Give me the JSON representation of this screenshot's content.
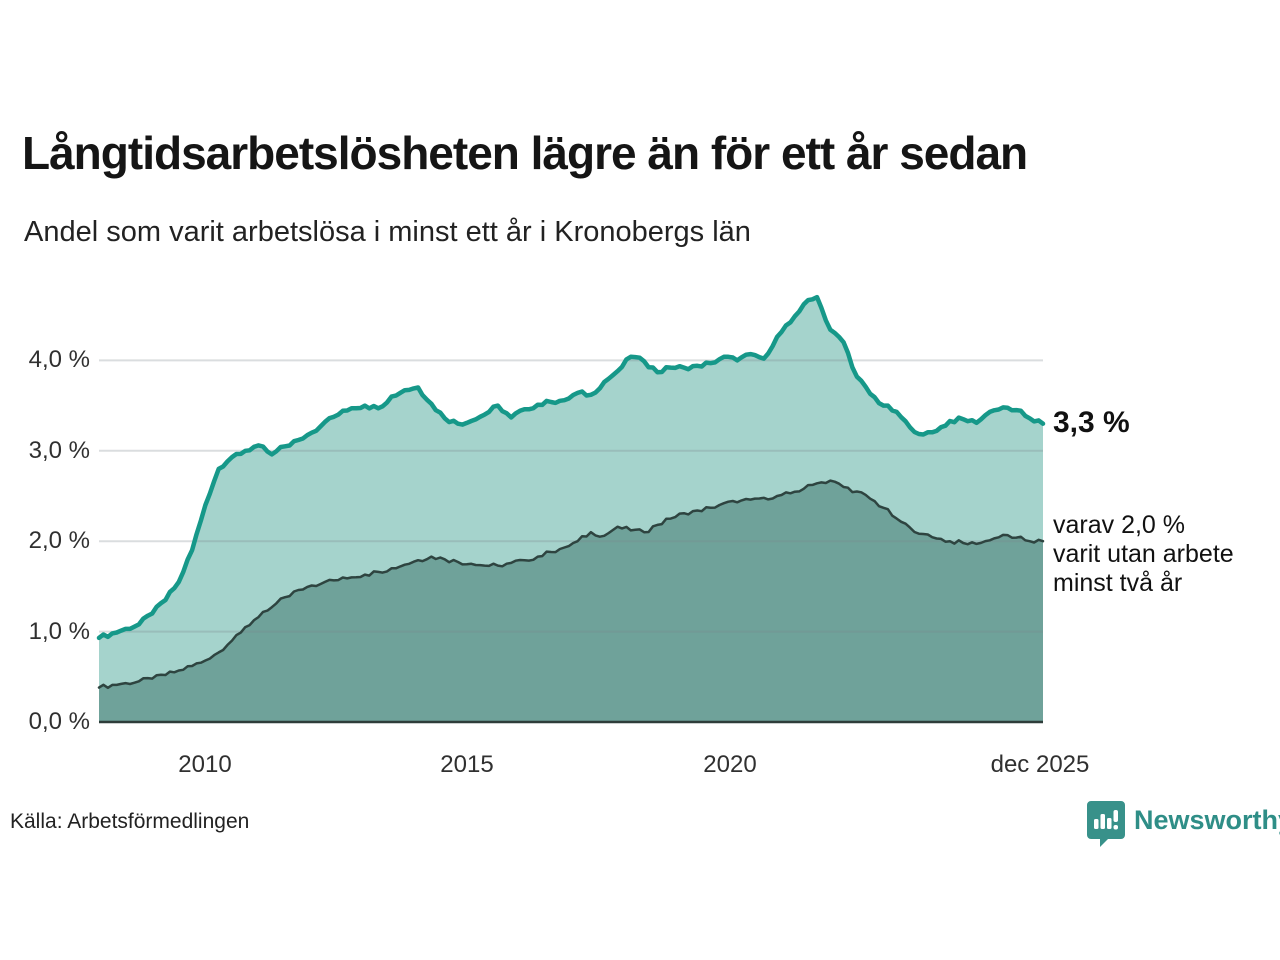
{
  "header": {
    "title": "Långtidsarbetslösheten lägre än för ett år sedan",
    "subtitle": "Andel som varit arbetslösa i minst ett år i Kronobergs län"
  },
  "chart_data": {
    "type": "area",
    "title": "Långtidsarbetslösheten lägre än för ett år sedan",
    "subtitle": "Andel som varit arbetslösa i minst ett år i Kronobergs län",
    "xlabel": "",
    "ylabel": "",
    "x_start": 2008,
    "x_step": 0.25,
    "x_domain": [
      2008,
      2025.75
    ],
    "ylim": [
      0,
      4.7
    ],
    "grid": "horizontal",
    "y_ticks": [
      "4,0 %",
      "3,0 %",
      "2,0 %",
      "1,0 %",
      "0,0 %"
    ],
    "y_tick_values": [
      4.0,
      3.0,
      2.0,
      1.0,
      0.0
    ],
    "x_ticks": [
      {
        "label": "2010",
        "year": 2010
      },
      {
        "label": "2015",
        "year": 2015
      },
      {
        "label": "2020",
        "year": 2020
      },
      {
        "label": "dec 2025",
        "year": 2025.75
      }
    ],
    "series": [
      {
        "name": "Andel som varit arbetslösa minst ett år",
        "line_color": "#169889",
        "fill_color": "#a5d3cc",
        "end_value": 3.3,
        "values": [
          0.93,
          0.98,
          1.03,
          1.08,
          1.2,
          1.35,
          1.55,
          1.9,
          2.4,
          2.8,
          2.93,
          3.0,
          3.06,
          2.96,
          3.05,
          3.12,
          3.2,
          3.32,
          3.4,
          3.47,
          3.5,
          3.47,
          3.6,
          3.67,
          3.7,
          3.52,
          3.36,
          3.3,
          3.33,
          3.4,
          3.5,
          3.37,
          3.46,
          3.51,
          3.54,
          3.56,
          3.64,
          3.62,
          3.76,
          3.88,
          4.04,
          3.99,
          3.87,
          3.92,
          3.92,
          3.94,
          3.97,
          4.04,
          4.0,
          4.07,
          4.02,
          4.26,
          4.42,
          4.62,
          4.7,
          4.34,
          4.2,
          3.82,
          3.63,
          3.5,
          3.43,
          3.26,
          3.18,
          3.22,
          3.33,
          3.35,
          3.31,
          3.43,
          3.48,
          3.45,
          3.36,
          3.3
        ]
      },
      {
        "name": "varav utan arbete minst två år",
        "line_color": "#2e4440",
        "fill_color": "#6fa29a",
        "end_value": 2.0,
        "values": [
          0.38,
          0.41,
          0.43,
          0.45,
          0.48,
          0.52,
          0.57,
          0.62,
          0.68,
          0.77,
          0.9,
          1.05,
          1.16,
          1.27,
          1.38,
          1.46,
          1.51,
          1.55,
          1.57,
          1.6,
          1.63,
          1.66,
          1.7,
          1.74,
          1.79,
          1.83,
          1.8,
          1.77,
          1.75,
          1.73,
          1.73,
          1.76,
          1.79,
          1.83,
          1.88,
          1.93,
          2.0,
          2.1,
          2.06,
          2.16,
          2.12,
          2.1,
          2.18,
          2.25,
          2.31,
          2.34,
          2.37,
          2.42,
          2.43,
          2.46,
          2.48,
          2.5,
          2.53,
          2.58,
          2.64,
          2.67,
          2.6,
          2.55,
          2.47,
          2.37,
          2.25,
          2.15,
          2.08,
          2.03,
          2.0,
          1.98,
          1.97,
          2.01,
          2.07,
          2.04,
          2.0,
          2.0
        ]
      }
    ],
    "annotations": {
      "latest_value": "3,3 %",
      "secondary_line1": "varav 2,0 %",
      "secondary_line2": "varit utan arbete",
      "secondary_line3": "minst två år"
    }
  },
  "footer": {
    "source": "Källa: Arbetsförmedlingen",
    "brand": "Newsworthy"
  },
  "colors": {
    "primary_line": "#169889",
    "primary_fill": "#a5d3cc",
    "secondary_line": "#2e4440",
    "secondary_fill": "#6fa29a",
    "gridline": "rgba(123,133,140,0.28)",
    "axis_line": "#2e3d3a",
    "brand_teal": "#2f8e87",
    "text_dark": "#151515"
  }
}
